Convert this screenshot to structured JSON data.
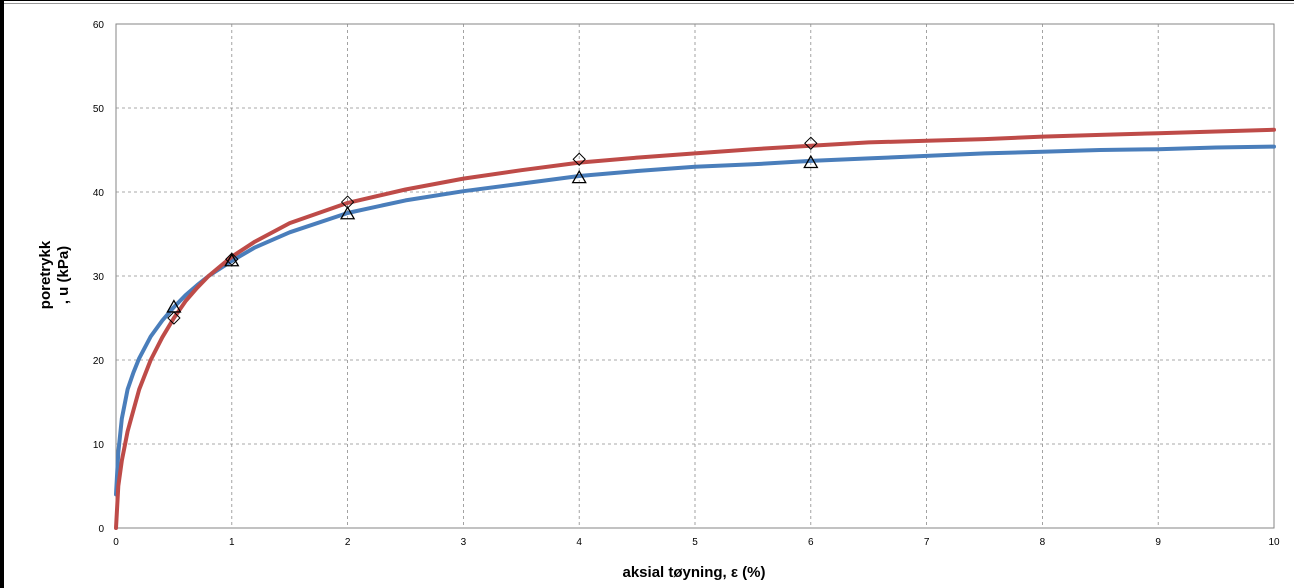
{
  "chart_data": {
    "type": "line",
    "title": "",
    "xlabel": "aksial tøyning, ε (%)",
    "ylabel_lines": [
      "poretrykk",
      ", u (kPa)"
    ],
    "xlim": [
      0,
      10
    ],
    "ylim": [
      0,
      60
    ],
    "x_ticks": [
      0,
      1,
      2,
      3,
      4,
      5,
      6,
      7,
      8,
      9,
      10
    ],
    "y_ticks": [
      0,
      10,
      20,
      30,
      40,
      50,
      60
    ],
    "grid": true,
    "series": [
      {
        "color": "#4a7ebb",
        "x": [
          0,
          0.02,
          0.05,
          0.1,
          0.15,
          0.2,
          0.3,
          0.4,
          0.5,
          0.6,
          0.7,
          0.8,
          1.0,
          1.2,
          1.5,
          2.0,
          2.5,
          3.0,
          3.5,
          4.0,
          4.5,
          5.0,
          5.5,
          6.0,
          6.5,
          7.0,
          7.5,
          8.0,
          8.5,
          9.0,
          9.5,
          10.0
        ],
        "y": [
          4,
          9,
          13,
          16.5,
          18.5,
          20.2,
          22.8,
          24.7,
          26.3,
          27.7,
          28.9,
          30.0,
          31.8,
          33.4,
          35.2,
          37.5,
          39.0,
          40.1,
          41.0,
          41.9,
          42.5,
          43.0,
          43.3,
          43.7,
          44.0,
          44.3,
          44.6,
          44.8,
          45.0,
          45.1,
          45.3,
          45.4
        ]
      },
      {
        "color": "#be4b48",
        "x": [
          0,
          0.02,
          0.05,
          0.1,
          0.15,
          0.2,
          0.3,
          0.4,
          0.5,
          0.6,
          0.7,
          0.8,
          1.0,
          1.2,
          1.5,
          2.0,
          2.5,
          3.0,
          3.5,
          4.0,
          4.5,
          5.0,
          5.5,
          6.0,
          6.5,
          7.0,
          7.5,
          8.0,
          8.5,
          9.0,
          9.5,
          10.0
        ],
        "y": [
          0,
          5,
          8,
          11.5,
          14,
          16.5,
          20.0,
          22.7,
          25.0,
          27.0,
          28.6,
          30.0,
          32.3,
          34.1,
          36.3,
          38.7,
          40.3,
          41.6,
          42.6,
          43.5,
          44.1,
          44.6,
          45.1,
          45.5,
          45.9,
          46.1,
          46.3,
          46.6,
          46.8,
          47.0,
          47.2,
          47.4
        ]
      }
    ],
    "markers": [
      {
        "symbol": "diamond",
        "x": [
          0.5,
          1,
          2,
          4,
          6
        ],
        "y": [
          25.0,
          32.0,
          38.8,
          43.9,
          45.8
        ]
      },
      {
        "symbol": "triangle",
        "x": [
          0.5,
          1,
          2,
          4,
          6
        ],
        "y": [
          26.3,
          31.8,
          37.4,
          41.7,
          43.5
        ]
      }
    ]
  }
}
